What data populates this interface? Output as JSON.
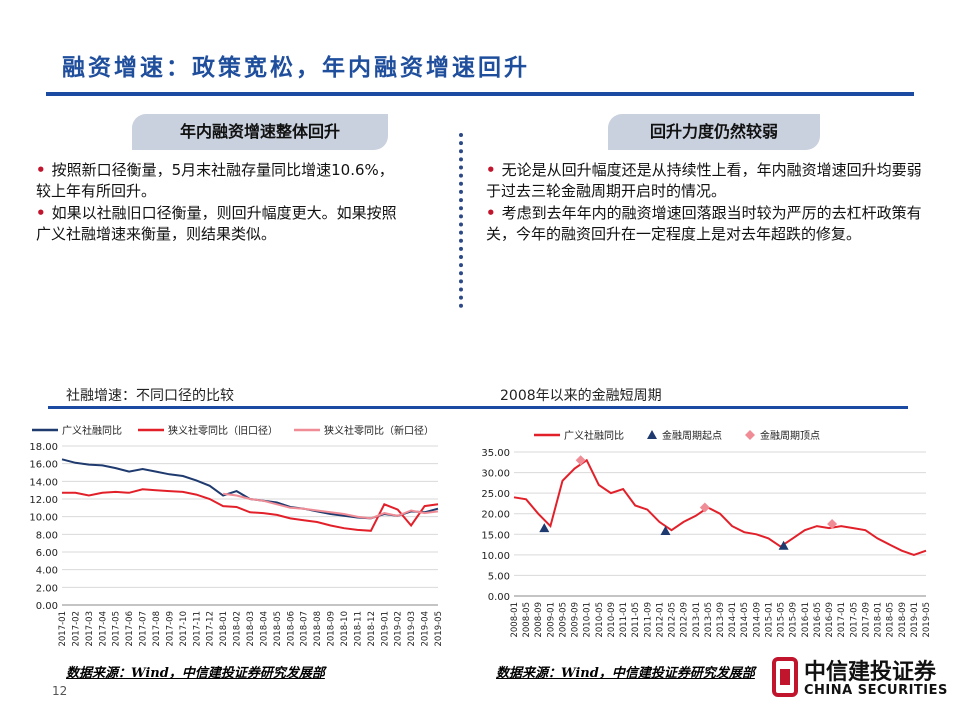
{
  "title": "融资增速：政策宽松，年内融资增速回升",
  "left": {
    "pill": "年内融资增速整体回升",
    "bullets": [
      "按照新口径衡量，5月末社融存量同比增速10.6%，较上年有所回升。",
      "如果以社融旧口径衡量，则回升幅度更大。如果按照广义社融增速来衡量，则结果类似。"
    ]
  },
  "right": {
    "pill": "回升力度仍然较弱",
    "bullets": [
      "无论是从回升幅度还是从持续性上看，年内融资增速回升均要弱于过去三轮金融周期开启时的情况。",
      "考虑到去年年内的融资增速回落跟当时较为严厉的去杠杆政策有关，今年的融资回升在一定程度上是对去年超跌的修复。"
    ]
  },
  "chart1_label": "社融增速：不同口径的比较",
  "chart2_label": "2008年以来的金融短周期",
  "source1": "数据来源：Wind，中信建投证券研究发展部",
  "source2": "数据来源：Wind，中信建投证券研究发展部",
  "page_number": "12",
  "logo": {
    "cn": "中信建投证券",
    "en": "CHINA SECURITIES"
  },
  "colors": {
    "title": "#1f4e9c",
    "rule": "#1b4aa3",
    "bullet": "#c0152d",
    "navy": "#1f3a6e",
    "red": "#e2202a",
    "pink": "#f08c96"
  },
  "chart_data": [
    {
      "type": "line",
      "title": "",
      "x": [
        "2017-01",
        "2017-02",
        "2017-03",
        "2017-04",
        "2017-05",
        "2017-06",
        "2017-07",
        "2017-08",
        "2017-09",
        "2017-10",
        "2017-11",
        "2017-12",
        "2018-01",
        "2018-02",
        "2018-03",
        "2018-04",
        "2018-05",
        "2018-06",
        "2018-07",
        "2018-08",
        "2018-09",
        "2018-10",
        "2018-11",
        "2018-12",
        "2019-01",
        "2019-02",
        "2019-03",
        "2019-04",
        "2019-05"
      ],
      "ylim": [
        0,
        18
      ],
      "yticks": [
        "0.00",
        "2.00",
        "4.00",
        "6.00",
        "8.00",
        "10.00",
        "12.00",
        "14.00",
        "16.00",
        "18.00"
      ],
      "legend_position": "top",
      "series": [
        {
          "name": "广义社融同比",
          "color": "#1f3a6e",
          "values": [
            16.5,
            16.1,
            15.9,
            15.8,
            15.5,
            15.1,
            15.4,
            15.1,
            14.8,
            14.6,
            14.1,
            13.5,
            12.4,
            12.9,
            12.0,
            11.8,
            11.6,
            11.1,
            10.9,
            10.6,
            10.3,
            10.1,
            9.9,
            9.8,
            10.3,
            10.1,
            10.6,
            10.5,
            10.9
          ]
        },
        {
          "name": "狭义社零同比（旧口径）",
          "color": "#e2202a",
          "values": [
            12.7,
            12.7,
            12.4,
            12.7,
            12.8,
            12.7,
            13.1,
            13.0,
            12.9,
            12.8,
            12.5,
            12.0,
            11.2,
            11.1,
            10.5,
            10.4,
            10.2,
            9.8,
            9.6,
            9.4,
            9.0,
            8.7,
            8.5,
            8.4,
            11.4,
            10.8,
            9.0,
            11.2,
            11.4
          ]
        },
        {
          "name": "狭义社零同比（新口径）",
          "color": "#f08c96",
          "values": [
            null,
            null,
            null,
            null,
            null,
            null,
            null,
            null,
            null,
            null,
            null,
            null,
            12.6,
            12.4,
            12.0,
            11.8,
            11.4,
            11.0,
            10.9,
            10.7,
            10.5,
            10.3,
            10.0,
            9.8,
            10.4,
            10.1,
            10.7,
            10.4,
            10.6
          ]
        }
      ]
    },
    {
      "type": "line",
      "title": "",
      "x": [
        "2008-01",
        "2008-05",
        "2008-09",
        "2009-01",
        "2009-05",
        "2009-09",
        "2010-01",
        "2010-05",
        "2010-09",
        "2011-01",
        "2011-05",
        "2011-09",
        "2012-01",
        "2012-05",
        "2012-09",
        "2013-01",
        "2013-05",
        "2013-09",
        "2014-01",
        "2014-05",
        "2014-09",
        "2015-01",
        "2015-05",
        "2015-09",
        "2016-01",
        "2016-05",
        "2016-09",
        "2017-01",
        "2017-05",
        "2017-09",
        "2018-01",
        "2018-05",
        "2018-09",
        "2019-01",
        "2019-05"
      ],
      "ylim": [
        0,
        35
      ],
      "yticks": [
        "0.00",
        "5.00",
        "10.00",
        "15.00",
        "20.00",
        "25.00",
        "30.00",
        "35.00"
      ],
      "legend_position": "top",
      "series": [
        {
          "name": "广义社融同比",
          "color": "#e2202a",
          "values": [
            24,
            23.5,
            20,
            17,
            28,
            31,
            33,
            27,
            25,
            26,
            22,
            21,
            18,
            16,
            18,
            19.5,
            21.5,
            20,
            17,
            15.5,
            15,
            14,
            12,
            14,
            16,
            17,
            16.5,
            17,
            16.5,
            16,
            14,
            12.5,
            11,
            10,
            11
          ]
        },
        {
          "name": "金融周期起点",
          "color": "#1f3a6e",
          "points": [
            {
              "x": "2008-11",
              "y": 16.5
            },
            {
              "x": "2012-03",
              "y": 15.8
            },
            {
              "x": "2015-06",
              "y": 12.2
            }
          ]
        },
        {
          "name": "金融周期顶点",
          "color": "#f08c96",
          "points": [
            {
              "x": "2009-11",
              "y": 33
            },
            {
              "x": "2013-04",
              "y": 21.5
            },
            {
              "x": "2016-10",
              "y": 17.5
            }
          ]
        }
      ]
    }
  ]
}
